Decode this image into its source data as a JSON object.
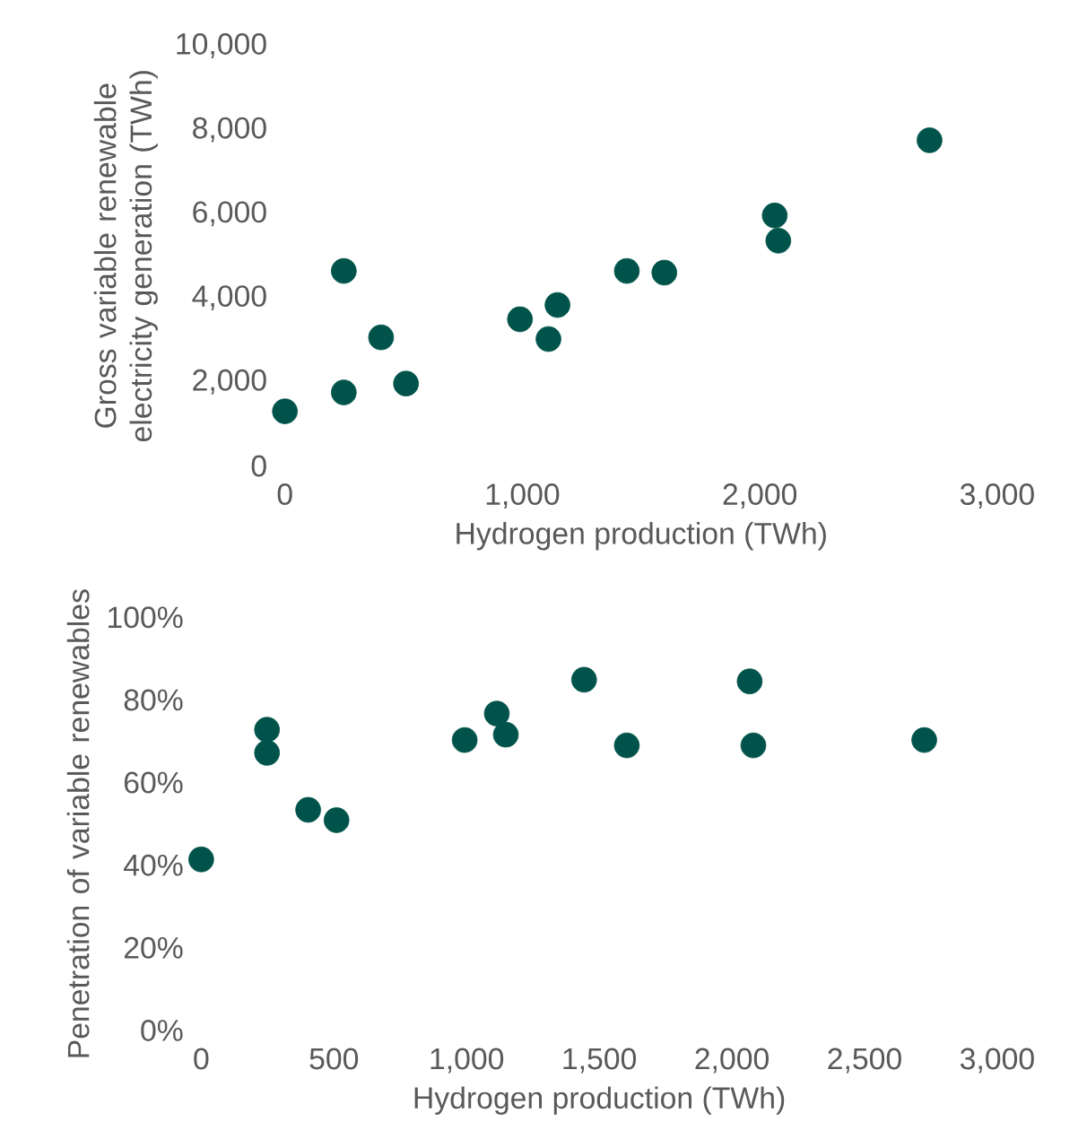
{
  "chart_data": [
    {
      "type": "scatter",
      "xlabel": "Hydrogen production (TWh)",
      "ylabel": "Gross variable renewable electricity generation (TWh)",
      "color": "#00534a",
      "marker": "circle",
      "x": [
        0,
        248,
        248,
        405,
        510,
        990,
        1110,
        1148,
        1440,
        1598,
        2063,
        2078,
        2715
      ],
      "values": [
        1300,
        1750,
        4640,
        3060,
        1960,
        3490,
        3020,
        3830,
        4640,
        4600,
        5960,
        5360,
        7750
      ],
      "xlim": [
        0,
        3000
      ],
      "ylim": [
        0,
        10000
      ],
      "xticks": [
        0,
        {
          "value": 1000,
          "label": "1,000"
        },
        {
          "value": 2000,
          "label": "2,000"
        },
        {
          "value": 3000,
          "label": "3,000"
        }
      ],
      "yticks": [
        0,
        {
          "value": 2000,
          "label": "2,000"
        },
        {
          "value": 4000,
          "label": "4,000"
        },
        {
          "value": 6000,
          "label": "6,000"
        },
        {
          "value": 8000,
          "label": "8,000"
        },
        {
          "value": 10000,
          "label": "10,000"
        }
      ]
    },
    {
      "type": "scatter",
      "xlabel": "Hydrogen production (TWh)",
      "ylabel": "Penetration of variable renewables",
      "color": "#00534a",
      "marker": "circle",
      "x": [
        0,
        248,
        248,
        403,
        510,
        993,
        1114,
        1148,
        1443,
        1604,
        2067,
        2081,
        2725
      ],
      "values": [
        41.4,
        72.8,
        67.2,
        53.4,
        50.9,
        70.3,
        76.7,
        71.6,
        84.9,
        69.0,
        84.5,
        69.0,
        70.3
      ],
      "xlim": [
        0,
        3000
      ],
      "ylim": [
        0,
        100
      ],
      "xticks": [
        0,
        500,
        {
          "value": 1000,
          "label": "1,000"
        },
        {
          "value": 1500,
          "label": "1,500"
        },
        {
          "value": 2000,
          "label": "2,000"
        },
        {
          "value": 2500,
          "label": "2,500"
        },
        {
          "value": 3000,
          "label": "3,000"
        }
      ],
      "yticks": [
        {
          "value": 0,
          "label": "0%"
        },
        {
          "value": 20,
          "label": "20%"
        },
        {
          "value": 40,
          "label": "40%"
        },
        {
          "value": 60,
          "label": "60%"
        },
        {
          "value": 80,
          "label": "80%"
        },
        {
          "value": 100,
          "label": "100%"
        }
      ]
    }
  ]
}
